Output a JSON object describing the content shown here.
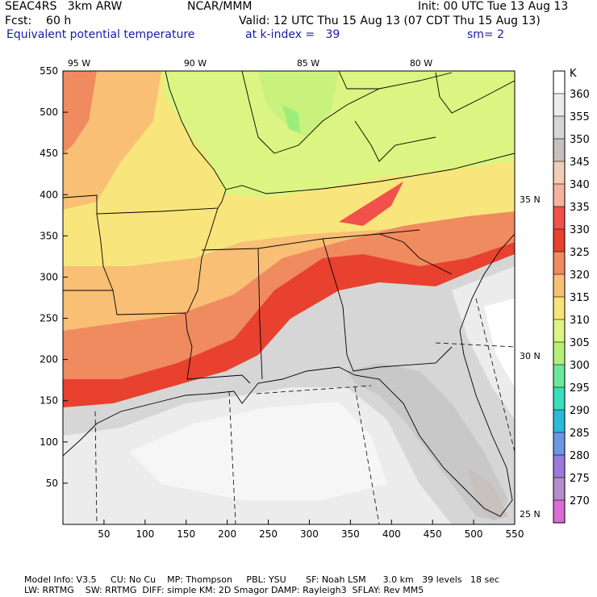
{
  "header": {
    "model": "SEAC4RS   3km ARW",
    "org": "NCAR/MMM",
    "init": "Init: 00 UTC Tue 13 Aug 13",
    "fcst": "Fcst:    60 h",
    "valid": "Valid: 12 UTC Thu 15 Aug 13 (07 CDT Thu 15 Aug 13)",
    "field": "Equivalent potential temperature",
    "level": "at k-index =   39",
    "smooth": "sm= 2"
  },
  "axes": {
    "x_ticks": [
      "50",
      "100",
      "150",
      "200",
      "250",
      "300",
      "350",
      "400",
      "450",
      "500",
      "550"
    ],
    "y_ticks": [
      "50",
      "100",
      "150",
      "200",
      "250",
      "300",
      "350",
      "400",
      "450",
      "500",
      "550"
    ],
    "lon_labels": [
      "95 W",
      "90 W",
      "85 W",
      "80 W"
    ],
    "lat_labels": [
      "35 N",
      "30 N",
      "25 N"
    ]
  },
  "colorbar": {
    "unit": "K",
    "levels": [
      "360",
      "355",
      "350",
      "345",
      "340",
      "335",
      "330",
      "325",
      "320",
      "315",
      "310",
      "305",
      "300",
      "295",
      "290",
      "285",
      "280",
      "275",
      "270"
    ],
    "colors": [
      "#ffffff",
      "#ececec",
      "#d6d6d6",
      "#c8c0bc",
      "#f0cdb5",
      "#f3b49d",
      "#f1514a",
      "#e8412f",
      "#f08a5f",
      "#f8bf75",
      "#f7e378",
      "#dcf582",
      "#b6ef78",
      "#6be99a",
      "#3adfb9",
      "#2cb9d9",
      "#6b98e3",
      "#9b79dd",
      "#b58ccc",
      "#dd6bd6"
    ]
  },
  "footer": {
    "line1": "Model Info: V3.5     CU: No Cu    MP: Thompson     PBL: YSU       SF: Noah LSM      3.0 km   39 levels   18 sec",
    "line2": "LW: RRTMG    SW: RRTMG  DIFF: simple KM: 2D Smagor DAMP: Rayleigh3  SFLAY: Rev MM5"
  }
}
